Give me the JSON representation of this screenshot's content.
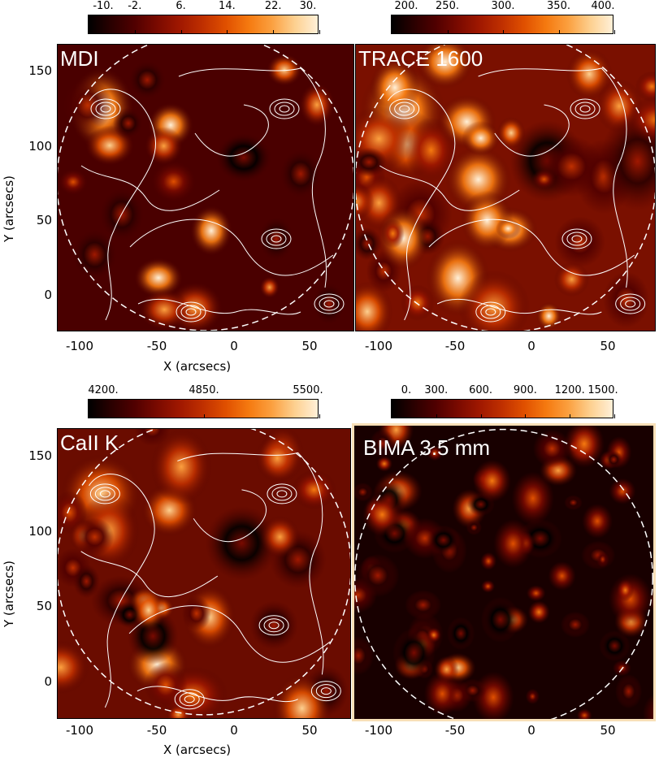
{
  "panels": [
    {
      "title": "MDI",
      "colorbar_labels": [
        "-10.",
        "-2.",
        "6.",
        "14.",
        "22.",
        "30."
      ],
      "seed": 11
    },
    {
      "title": "TRACE 1600",
      "colorbar_labels": [
        "200.",
        "250.",
        "300.",
        "350.",
        "400."
      ],
      "seed": 23
    },
    {
      "title": "CaII K",
      "colorbar_labels": [
        "4200.",
        "4850.",
        "5500."
      ],
      "seed": 37
    },
    {
      "title": "BIMA 3.5 mm",
      "colorbar_labels": [
        "0.",
        "300.",
        "600.",
        "900.",
        "1200.",
        "1500."
      ],
      "seed": 53
    }
  ],
  "axes": {
    "x_title": "X (arcsecs)",
    "y_title": "Y (arcsecs)",
    "x_ticks": [
      "-100",
      "-50",
      "0",
      "50"
    ],
    "y_ticks": [
      "150",
      "100",
      "50",
      "0"
    ]
  },
  "colors": {
    "colormap": [
      "#000000",
      "#2a0000",
      "#500000",
      "#7a0a00",
      "#a01800",
      "#c03000",
      "#e05000",
      "#f57a10",
      "#fba040",
      "#fdd090",
      "#fff0d8"
    ],
    "bima_frame": "#f8e0b8",
    "contour": "#ffffff"
  }
}
